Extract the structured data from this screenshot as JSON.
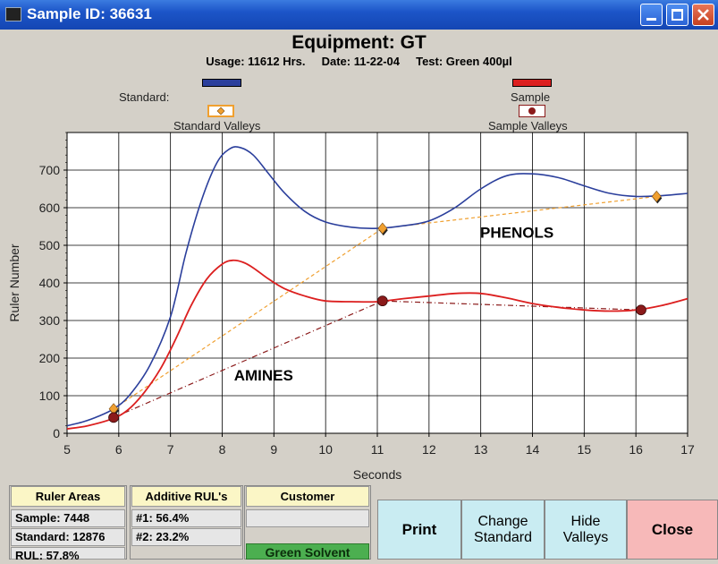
{
  "window": {
    "title": "Sample ID: 36631"
  },
  "header": {
    "equipment": "Equipment: GT",
    "usage": "Usage: 11612 Hrs.",
    "date": "Date: 11-22-04",
    "test": "Test: Green 400µl"
  },
  "legend": {
    "standard_label": "Standard:",
    "sample_label": "Sample",
    "standard_valleys_label": "Standard Valleys",
    "sample_valleys_label": "Sample Valleys",
    "standard_color": "#2b3f9c",
    "sample_color": "#dc1f1f",
    "standard_valley_color": "#f0a030",
    "sample_valley_color": "#8b1a1a"
  },
  "chart_data": {
    "type": "line",
    "xlabel": "Seconds",
    "ylabel": "Ruler Number",
    "xlim": [
      5,
      17
    ],
    "ylim": [
      0,
      800
    ],
    "x_ticks": [
      5,
      6,
      7,
      8,
      9,
      10,
      11,
      12,
      13,
      14,
      15,
      16,
      17
    ],
    "y_ticks": [
      0,
      100,
      200,
      300,
      400,
      500,
      600,
      700
    ],
    "grid": true,
    "annotations": [
      {
        "text": "PHENOLS",
        "x": 13.7,
        "y": 520
      },
      {
        "text": "AMINES",
        "x": 8.8,
        "y": 140
      }
    ],
    "series": [
      {
        "name": "Standard",
        "color": "#2b3f9c",
        "x": [
          5.0,
          5.3,
          5.6,
          5.9,
          6.2,
          6.6,
          7.0,
          7.3,
          7.6,
          7.9,
          8.15,
          8.35,
          8.6,
          8.9,
          9.2,
          9.6,
          10.0,
          10.5,
          11.0,
          11.5,
          12.0,
          12.5,
          13.0,
          13.5,
          14.0,
          14.5,
          15.0,
          15.5,
          16.0,
          16.5,
          17.0
        ],
        "y": [
          20,
          30,
          45,
          65,
          100,
          180,
          310,
          480,
          620,
          720,
          757,
          760,
          740,
          690,
          640,
          590,
          562,
          548,
          545,
          552,
          565,
          600,
          650,
          685,
          690,
          680,
          658,
          638,
          630,
          632,
          638
        ]
      },
      {
        "name": "Sample",
        "color": "#dc1f1f",
        "x": [
          5.0,
          5.4,
          5.9,
          6.2,
          6.5,
          6.8,
          7.1,
          7.4,
          7.7,
          8.0,
          8.2,
          8.4,
          8.6,
          8.9,
          9.2,
          9.6,
          10.0,
          10.5,
          11.0,
          11.5,
          12.0,
          12.5,
          13.0,
          13.5,
          14.0,
          14.5,
          15.0,
          15.5,
          16.0,
          16.5,
          17.0
        ],
        "y": [
          12,
          20,
          40,
          65,
          110,
          170,
          250,
          340,
          410,
          450,
          460,
          455,
          440,
          410,
          385,
          365,
          352,
          350,
          350,
          358,
          365,
          372,
          372,
          360,
          345,
          335,
          328,
          325,
          328,
          340,
          358
        ]
      },
      {
        "name": "Standard Valleys",
        "color": "#f0a030",
        "x": [
          5.9,
          11.1,
          16.4
        ],
        "y": [
          65,
          545,
          630
        ]
      },
      {
        "name": "Sample Valleys",
        "color": "#8b1a1a",
        "x": [
          5.9,
          11.1,
          16.1
        ],
        "y": [
          42,
          352,
          328
        ]
      }
    ]
  },
  "ruler_areas": {
    "header": "Ruler Areas",
    "sample": "Sample: 7448",
    "standard": "Standard: 12876",
    "rul": "RUL: 57.8%"
  },
  "additive_ruls": {
    "header": "Additive RUL's",
    "item1": "#1: 56.4%",
    "item2": "#2: 23.2%"
  },
  "customer": {
    "header": "Customer",
    "value": "",
    "solvent": "Green Solvent"
  },
  "buttons": {
    "print": "Print",
    "change_standard": "Change\nStandard",
    "hide_valleys": "Hide\nValleys",
    "close": "Close"
  }
}
